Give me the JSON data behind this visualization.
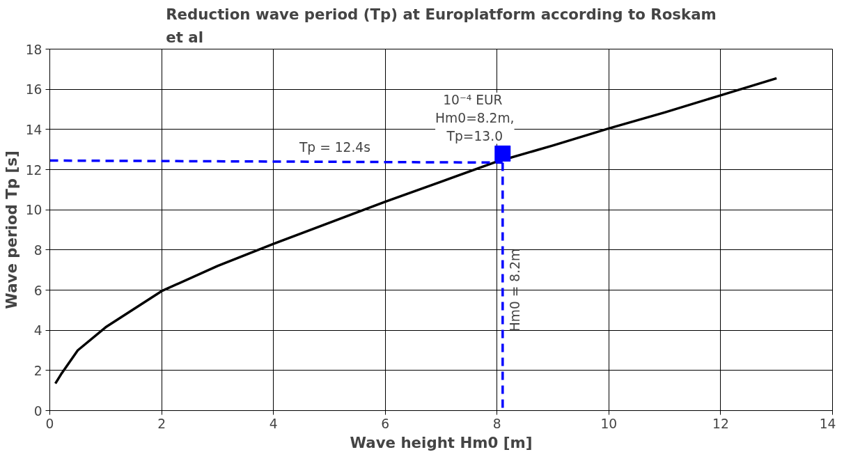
{
  "chart_data": {
    "type": "line",
    "title": "Reduction wave period (Tp) at Europlatform according to Roskam et al",
    "xlabel": "Wave height Hm0 [m]",
    "ylabel": "Wave period Tp [s]",
    "xlim": [
      0,
      14
    ],
    "ylim": [
      0,
      18
    ],
    "xticks": [
      0,
      2,
      4,
      6,
      8,
      10,
      12,
      14
    ],
    "yticks": [
      0,
      2,
      4,
      6,
      8,
      10,
      12,
      14,
      16,
      18
    ],
    "grid": true,
    "series": [
      {
        "color": "#000000",
        "line_style": "solid",
        "x": [
          0.1,
          0.2,
          0.5,
          1,
          2,
          3,
          4,
          5,
          6,
          7,
          8,
          9,
          10,
          11,
          12,
          13
        ],
        "values": [
          1.35,
          1.8,
          3.0,
          4.15,
          5.95,
          7.2,
          8.3,
          9.35,
          10.4,
          11.4,
          12.4,
          13.2,
          14.05,
          14.85,
          15.7,
          16.55
        ]
      },
      {
        "color": "#0000ff",
        "line_style": "dashed",
        "x": [
          0,
          8.1
        ],
        "values": [
          12.45,
          12.35
        ]
      },
      {
        "color": "#0000ff",
        "line_style": "dashed",
        "x": [
          8.1,
          8.1
        ],
        "values": [
          12.35,
          0
        ]
      },
      {
        "type": "scatter",
        "color": "#0000ff",
        "marker": "square",
        "x": [
          8.1
        ],
        "values": [
          12.8
        ]
      }
    ],
    "annotations": [
      "10⁻⁴  EUR\nHm0=8.2m,\nTp=13.0",
      {
        "text": "Tp = 12.4s",
        "x": 5.1,
        "y": 12.4
      },
      {
        "text": "Hm0 = 8.2m",
        "x": 8.1
      }
    ]
  }
}
